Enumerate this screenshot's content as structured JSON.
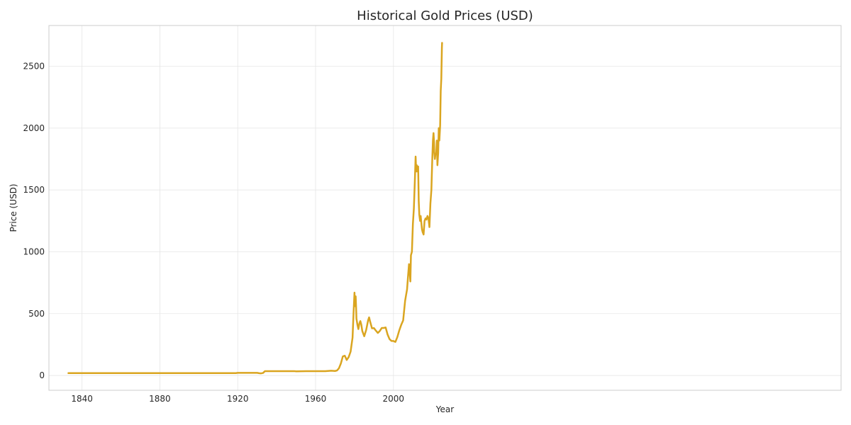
{
  "chart_data": {
    "type": "line",
    "title": "Historical Gold Prices (USD)",
    "xlabel": "Year",
    "ylabel": "Price (USD)",
    "xlim": [
      1823,
      2230
    ],
    "ylim": [
      -120,
      2830
    ],
    "xticks": [
      1840,
      1880,
      1920,
      1960,
      2000
    ],
    "yticks": [
      0,
      500,
      1000,
      1500,
      2000,
      2500
    ],
    "grid": true,
    "legend": "none",
    "series": [
      {
        "color": "#DAA520",
        "x": [
          1833,
          1850,
          1870,
          1890,
          1910,
          1919,
          1920,
          1925,
          1930,
          1931,
          1932,
          1933,
          1934,
          1935,
          1940,
          1945,
          1949,
          1950,
          1955,
          1960,
          1965,
          1968,
          1970,
          1971,
          1972,
          1973,
          1974,
          1975,
          1976,
          1977,
          1978,
          1979,
          1979.5,
          1980.0,
          1980.2,
          1980.4,
          1980.6,
          1980.8,
          1981,
          1981.5,
          1982,
          1982.5,
          1983,
          1983.5,
          1984,
          1985,
          1986,
          1987,
          1987.5,
          1988,
          1989,
          1990,
          1991,
          1992,
          1993,
          1994,
          1995,
          1996,
          1997,
          1998,
          1999,
          2000,
          2001,
          2002,
          2003,
          2004,
          2005,
          2006,
          2006.5,
          2007,
          2007.5,
          2008,
          2008.3,
          2008.7,
          2009,
          2009.5,
          2010,
          2010.5,
          2011,
          2011.4,
          2011.7,
          2012,
          2012.3,
          2012.7,
          2013,
          2013.3,
          2013.7,
          2014,
          2014.3,
          2014.7,
          2015,
          2015.5,
          2016,
          2016.5,
          2017,
          2017.5,
          2018,
          2018.5,
          2019,
          2019.5,
          2020,
          2020.3,
          2020.6,
          2020.9,
          2021,
          2021.3,
          2021.6,
          2022,
          2022.3,
          2022.6,
          2023,
          2023.3,
          2023.6,
          2024,
          2024.3,
          2024.6,
          2024.9,
          2025
        ],
        "values": [
          19,
          19,
          19,
          19,
          19,
          19,
          21,
          21,
          21,
          18,
          17,
          20,
          35,
          35,
          35,
          35,
          35,
          33,
          35,
          35,
          35,
          38,
          36,
          40,
          58,
          97,
          154,
          160,
          125,
          148,
          193,
          306,
          500,
          670,
          560,
          620,
          640,
          560,
          460,
          410,
          375,
          420,
          440,
          410,
          360,
          317,
          368,
          446,
          470,
          437,
          381,
          383,
          362,
          344,
          360,
          384,
          384,
          388,
          331,
          294,
          279,
          279,
          271,
          310,
          364,
          409,
          445,
          603,
          650,
          695,
          800,
          900,
          850,
          760,
          972,
          1000,
          1225,
          1350,
          1570,
          1770,
          1650,
          1700,
          1650,
          1690,
          1410,
          1300,
          1250,
          1290,
          1240,
          1180,
          1160,
          1140,
          1250,
          1270,
          1260,
          1290,
          1270,
          1200,
          1390,
          1500,
          1769,
          1900,
          1960,
          1880,
          1800,
          1750,
          1790,
          1800,
          1900,
          1700,
          1800,
          2000,
          1900,
          2020,
          2300,
          2400,
          2650,
          2690
        ]
      }
    ]
  }
}
